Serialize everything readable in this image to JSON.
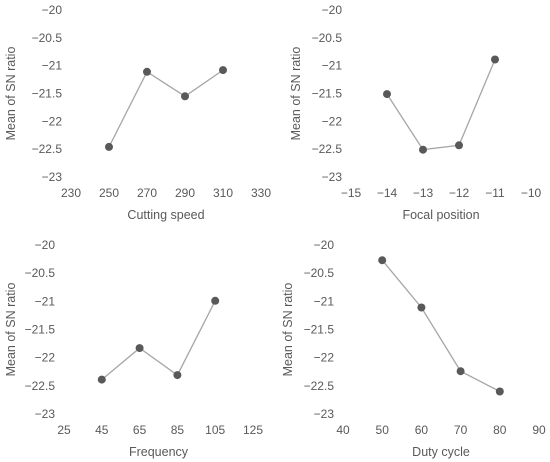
{
  "chart_data": [
    {
      "type": "line",
      "title": "",
      "xlabel": "Cutting speed",
      "ylabel": "Mean of SN ratio",
      "x": [
        250,
        270,
        290,
        310
      ],
      "y": [
        -22.46,
        -21.11,
        -21.55,
        -21.08
      ],
      "xlim": [
        230,
        330
      ],
      "xticks": [
        230,
        250,
        270,
        290,
        310,
        330
      ],
      "xtick_labels": [
        "230",
        "250",
        "270",
        "290",
        "310",
        "330"
      ],
      "ylim": [
        -23,
        -20
      ],
      "yticks": [
        -20,
        -20.5,
        -21,
        -21.5,
        -22,
        -22.5,
        -23
      ],
      "ytick_labels": [
        "−20",
        "−20.5",
        "−21",
        "−21.5",
        "−22",
        "−22.5",
        "−23"
      ],
      "grid": false,
      "legend": "none",
      "line_color": "#a6a6a6",
      "marker_color": "#595959"
    },
    {
      "type": "line",
      "title": "",
      "xlabel": "Focal position",
      "ylabel": "Mean of SN ratio",
      "x": [
        -14,
        -13,
        -12,
        -11
      ],
      "y": [
        -21.51,
        -22.51,
        -22.43,
        -20.89
      ],
      "xlim": [
        -15,
        -10
      ],
      "xticks": [
        -15,
        -14,
        -13,
        -12,
        -11,
        -10
      ],
      "xtick_labels": [
        "−15",
        "−14",
        "−13",
        "−12",
        "−11",
        "−10"
      ],
      "ylim": [
        -23,
        -20
      ],
      "yticks": [
        -20,
        -20.5,
        -21,
        -21.5,
        -22,
        -22.5,
        -23
      ],
      "ytick_labels": [
        "−20",
        "−20.5",
        "−21",
        "−21.5",
        "−22",
        "−22.5",
        "−23"
      ],
      "grid": false,
      "legend": "none",
      "line_color": "#a6a6a6",
      "marker_color": "#595959"
    },
    {
      "type": "line",
      "title": "",
      "xlabel": "Frequency",
      "ylabel": "Mean of SN ratio",
      "x": [
        45,
        65,
        85,
        105
      ],
      "y": [
        -22.39,
        -21.83,
        -22.31,
        -20.99
      ],
      "xlim": [
        25,
        125
      ],
      "xticks": [
        25,
        45,
        65,
        85,
        105,
        125
      ],
      "xtick_labels": [
        "25",
        "45",
        "65",
        "85",
        "105",
        "125"
      ],
      "ylim": [
        -23,
        -20
      ],
      "yticks": [
        -20,
        -20.5,
        -21,
        -21.5,
        -22,
        -22.5,
        -23
      ],
      "ytick_labels": [
        "−20",
        "−20.5",
        "−21",
        "−21.5",
        "−22",
        "−22.5",
        "−23"
      ],
      "grid": false,
      "legend": "none",
      "line_color": "#a6a6a6",
      "marker_color": "#595959"
    },
    {
      "type": "line",
      "title": "",
      "xlabel": "Duty cycle",
      "ylabel": "Mean of SN ratio",
      "x": [
        50,
        60,
        70,
        80
      ],
      "y": [
        -20.27,
        -21.11,
        -22.24,
        -22.6
      ],
      "xlim": [
        40,
        90
      ],
      "xticks": [
        40,
        50,
        60,
        70,
        80,
        90
      ],
      "xtick_labels": [
        "40",
        "50",
        "60",
        "70",
        "80",
        "90"
      ],
      "ylim": [
        -23,
        -20
      ],
      "yticks": [
        -20,
        -20.5,
        -21,
        -21.5,
        -22,
        -22.5,
        -23
      ],
      "ytick_labels": [
        "−20",
        "−20.5",
        "−21",
        "−21.5",
        "−22",
        "−22.5",
        "−23"
      ],
      "grid": false,
      "legend": "none",
      "line_color": "#a6a6a6",
      "marker_color": "#595959"
    }
  ]
}
